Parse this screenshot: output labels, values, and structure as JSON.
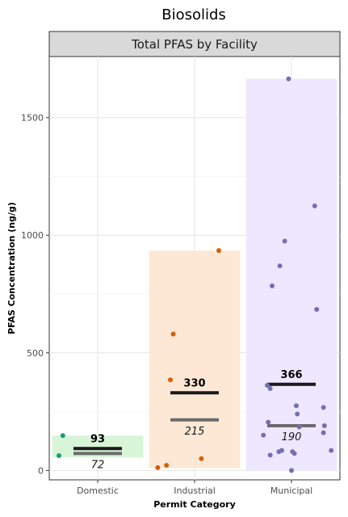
{
  "chart_data": {
    "type": "scatter",
    "title": "Biosolids",
    "facet_label": "Total PFAS by Facility",
    "xlabel": "Permit Category",
    "ylabel": "PFAS Concentration (ng/g)",
    "ylim": [
      -40,
      1760
    ],
    "yticks": [
      0,
      500,
      1000,
      1500
    ],
    "grid": true,
    "categories": [
      "Domestic",
      "Industrial",
      "Municipal"
    ],
    "series": [
      {
        "category": "Domestic",
        "color": "#1b9e77",
        "band_color": "#d8f5d8",
        "range": [
          55,
          148
        ],
        "mean": 93,
        "median": 72,
        "mean_label": "93",
        "median_label": "72",
        "points": [
          [
            -0.36,
            148
          ],
          [
            -0.4,
            63
          ]
        ]
      },
      {
        "category": "Industrial",
        "color": "#d95f02",
        "band_color": "#fde8d6",
        "range": [
          10,
          935
        ],
        "mean": 330,
        "median": 215,
        "mean_label": "330",
        "median_label": "215",
        "points": [
          [
            0.25,
            935
          ],
          [
            -0.22,
            580
          ],
          [
            -0.25,
            385
          ],
          [
            0.07,
            50
          ],
          [
            -0.29,
            22
          ],
          [
            -0.38,
            12
          ]
        ]
      },
      {
        "category": "Municipal",
        "color": "#7570b3",
        "band_color": "#ede8ff",
        "range": [
          0,
          1665
        ],
        "mean": 366,
        "median": 190,
        "mean_label": "366",
        "median_label": "190",
        "points": [
          [
            -0.03,
            1665
          ],
          [
            0.24,
            1125
          ],
          [
            -0.07,
            975
          ],
          [
            -0.12,
            870
          ],
          [
            -0.2,
            785
          ],
          [
            0.26,
            685
          ],
          [
            -0.25,
            362
          ],
          [
            -0.22,
            348
          ],
          [
            0.05,
            275
          ],
          [
            0.06,
            240
          ],
          [
            0.33,
            268
          ],
          [
            -0.24,
            205
          ],
          [
            0.08,
            185
          ],
          [
            0.34,
            190
          ],
          [
            0.33,
            160
          ],
          [
            -0.29,
            150
          ],
          [
            -0.1,
            85
          ],
          [
            -0.13,
            80
          ],
          [
            0.01,
            80
          ],
          [
            0.03,
            72
          ],
          [
            -0.22,
            65
          ],
          [
            0.41,
            85
          ],
          [
            0.0,
            0
          ]
        ]
      }
    ]
  }
}
